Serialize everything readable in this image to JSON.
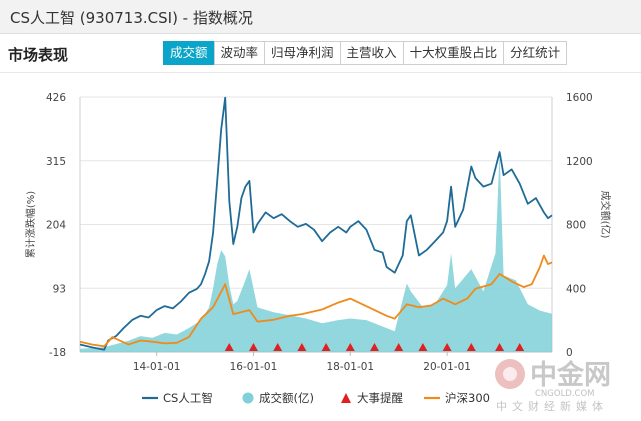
{
  "window": {
    "title": "CS人工智 (930713.CSI) - 指数概况"
  },
  "section": {
    "title": "市场表现"
  },
  "tabs": [
    {
      "label": "成交额",
      "active": true
    },
    {
      "label": "波动率",
      "active": false
    },
    {
      "label": "归母净利润",
      "active": false
    },
    {
      "label": "主营收入",
      "active": false
    },
    {
      "label": "十大权重股占比",
      "active": false
    },
    {
      "label": "分红统计",
      "active": false
    }
  ],
  "colors": {
    "accent": "#0aa5c9",
    "index_line": "#1f6b96",
    "volume_area": "#7fd0d8",
    "hs300_line": "#f08a1a",
    "event_marker": "#e02020"
  },
  "watermark": {
    "logo": "中金网",
    "domain": "CNGOLD.COM",
    "slogan": "中文财经新媒体"
  },
  "chart_data": {
    "type": "line",
    "left_axis": {
      "title": "累计涨跌幅(%)",
      "ticks": [
        "426",
        "315",
        "204",
        "93",
        "-18"
      ],
      "range": [
        -18,
        426
      ]
    },
    "right_axis": {
      "title": "成交额(亿)",
      "ticks": [
        "1600",
        "1200",
        "800",
        "400",
        "0"
      ],
      "range": [
        0,
        1600
      ]
    },
    "x_ticks": [
      "14-01-01",
      "16-01-01",
      "18-01-01",
      "20-01-01"
    ],
    "x_range": [
      "2012-06-01",
      "2022-03-01"
    ],
    "legend": [
      "CS人工智",
      "成交额(亿)",
      "大事提醒",
      "沪深300"
    ],
    "series": [
      {
        "name": "CS人工智",
        "axis": "left",
        "points": [
          [
            "2012-06",
            -5
          ],
          [
            "2012-09",
            -10
          ],
          [
            "2012-12",
            -14
          ],
          [
            "2013-01",
            2
          ],
          [
            "2013-03",
            10
          ],
          [
            "2013-05",
            25
          ],
          [
            "2013-07",
            38
          ],
          [
            "2013-09",
            45
          ],
          [
            "2013-11",
            42
          ],
          [
            "2014-01",
            55
          ],
          [
            "2014-03",
            62
          ],
          [
            "2014-05",
            58
          ],
          [
            "2014-07",
            70
          ],
          [
            "2014-09",
            85
          ],
          [
            "2014-11",
            92
          ],
          [
            "2014-12",
            100
          ],
          [
            "2015-01",
            118
          ],
          [
            "2015-02",
            140
          ],
          [
            "2015-03",
            190
          ],
          [
            "2015-04",
            280
          ],
          [
            "2015-05",
            370
          ],
          [
            "2015-06",
            425
          ],
          [
            "2015-07",
            245
          ],
          [
            "2015-08",
            170
          ],
          [
            "2015-09",
            200
          ],
          [
            "2015-10",
            250
          ],
          [
            "2015-11",
            270
          ],
          [
            "2015-12",
            280
          ],
          [
            "2016-01",
            190
          ],
          [
            "2016-02",
            205
          ],
          [
            "2016-04",
            225
          ],
          [
            "2016-06",
            215
          ],
          [
            "2016-08",
            222
          ],
          [
            "2016-10",
            210
          ],
          [
            "2016-12",
            200
          ],
          [
            "2017-02",
            205
          ],
          [
            "2017-04",
            195
          ],
          [
            "2017-06",
            175
          ],
          [
            "2017-08",
            190
          ],
          [
            "2017-10",
            200
          ],
          [
            "2017-12",
            190
          ],
          [
            "2018-01",
            200
          ],
          [
            "2018-03",
            210
          ],
          [
            "2018-05",
            195
          ],
          [
            "2018-07",
            160
          ],
          [
            "2018-09",
            155
          ],
          [
            "2018-10",
            130
          ],
          [
            "2018-12",
            120
          ],
          [
            "2019-02",
            150
          ],
          [
            "2019-03",
            210
          ],
          [
            "2019-04",
            220
          ],
          [
            "2019-06",
            150
          ],
          [
            "2019-08",
            160
          ],
          [
            "2019-10",
            175
          ],
          [
            "2019-12",
            190
          ],
          [
            "2020-01",
            210
          ],
          [
            "2020-02",
            270
          ],
          [
            "2020-03",
            200
          ],
          [
            "2020-05",
            230
          ],
          [
            "2020-07",
            305
          ],
          [
            "2020-08",
            285
          ],
          [
            "2020-10",
            270
          ],
          [
            "2020-12",
            275
          ],
          [
            "2021-02",
            330
          ],
          [
            "2021-03",
            290
          ],
          [
            "2021-05",
            300
          ],
          [
            "2021-07",
            275
          ],
          [
            "2021-09",
            240
          ],
          [
            "2021-11",
            250
          ],
          [
            "2022-01",
            225
          ],
          [
            "2022-02",
            215
          ],
          [
            "2022-03",
            220
          ]
        ]
      },
      {
        "name": "沪深300",
        "axis": "left",
        "points": [
          [
            "2012-06",
            0
          ],
          [
            "2012-09",
            -5
          ],
          [
            "2012-12",
            -8
          ],
          [
            "2013-02",
            8
          ],
          [
            "2013-06",
            -5
          ],
          [
            "2013-09",
            2
          ],
          [
            "2013-12",
            0
          ],
          [
            "2014-03",
            -3
          ],
          [
            "2014-06",
            -2
          ],
          [
            "2014-09",
            8
          ],
          [
            "2014-12",
            40
          ],
          [
            "2015-03",
            60
          ],
          [
            "2015-06",
            100
          ],
          [
            "2015-08",
            48
          ],
          [
            "2015-12",
            55
          ],
          [
            "2016-02",
            35
          ],
          [
            "2016-06",
            38
          ],
          [
            "2016-10",
            45
          ],
          [
            "2017-01",
            48
          ],
          [
            "2017-06",
            56
          ],
          [
            "2017-10",
            68
          ],
          [
            "2018-01",
            75
          ],
          [
            "2018-04",
            65
          ],
          [
            "2018-07",
            55
          ],
          [
            "2018-10",
            45
          ],
          [
            "2018-12",
            40
          ],
          [
            "2019-03",
            65
          ],
          [
            "2019-06",
            60
          ],
          [
            "2019-09",
            63
          ],
          [
            "2019-12",
            75
          ],
          [
            "2020-03",
            65
          ],
          [
            "2020-06",
            75
          ],
          [
            "2020-08",
            92
          ],
          [
            "2020-12",
            100
          ],
          [
            "2021-02",
            118
          ],
          [
            "2021-05",
            105
          ],
          [
            "2021-08",
            95
          ],
          [
            "2021-10",
            100
          ],
          [
            "2021-12",
            130
          ],
          [
            "2022-01",
            150
          ],
          [
            "2022-02",
            135
          ],
          [
            "2022-03",
            138
          ]
        ]
      },
      {
        "name": "成交额(亿)",
        "axis": "right",
        "type": "area",
        "points": [
          [
            "2012-06",
            20
          ],
          [
            "2012-12",
            30
          ],
          [
            "2013-03",
            50
          ],
          [
            "2013-06",
            70
          ],
          [
            "2013-09",
            100
          ],
          [
            "2013-12",
            90
          ],
          [
            "2014-03",
            120
          ],
          [
            "2014-06",
            110
          ],
          [
            "2014-09",
            150
          ],
          [
            "2014-12",
            200
          ],
          [
            "2015-02",
            280
          ],
          [
            "2015-03",
            400
          ],
          [
            "2015-04",
            550
          ],
          [
            "2015-05",
            640
          ],
          [
            "2015-06",
            600
          ],
          [
            "2015-07",
            420
          ],
          [
            "2015-08",
            300
          ],
          [
            "2015-09",
            320
          ],
          [
            "2015-11",
            450
          ],
          [
            "2015-12",
            520
          ],
          [
            "2016-02",
            280
          ],
          [
            "2016-06",
            250
          ],
          [
            "2016-10",
            230
          ],
          [
            "2017-02",
            210
          ],
          [
            "2017-06",
            180
          ],
          [
            "2017-10",
            200
          ],
          [
            "2018-01",
            210
          ],
          [
            "2018-05",
            200
          ],
          [
            "2018-09",
            160
          ],
          [
            "2018-12",
            130
          ],
          [
            "2019-03",
            430
          ],
          [
            "2019-04",
            380
          ],
          [
            "2019-07",
            280
          ],
          [
            "2019-10",
            300
          ],
          [
            "2020-01",
            420
          ],
          [
            "2020-02",
            620
          ],
          [
            "2020-03",
            400
          ],
          [
            "2020-07",
            520
          ],
          [
            "2020-10",
            380
          ],
          [
            "2021-01",
            620
          ],
          [
            "2021-02",
            1250
          ],
          [
            "2021-03",
            480
          ],
          [
            "2021-06",
            450
          ],
          [
            "2021-09",
            300
          ],
          [
            "2021-12",
            260
          ],
          [
            "2022-03",
            240
          ]
        ]
      }
    ],
    "events": [
      "2015-07",
      "2016-01",
      "2016-07",
      "2017-01",
      "2017-07",
      "2018-01",
      "2018-07",
      "2019-01",
      "2019-07",
      "2020-01",
      "2020-07",
      "2021-02",
      "2021-07"
    ]
  }
}
